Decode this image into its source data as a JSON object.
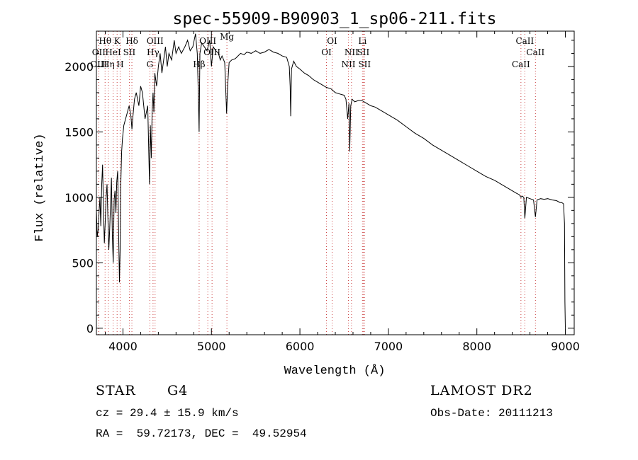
{
  "chart_data": {
    "type": "line",
    "title": "spec-55909-B90903_1_sp06-211.fits",
    "xlabel": "Wavelength (Å)",
    "ylabel": "Flux (relative)",
    "xlim": [
      3700,
      9100
    ],
    "ylim": [
      -50,
      2270
    ],
    "xticks": [
      4000,
      5000,
      6000,
      7000,
      8000,
      9000
    ],
    "yticks": [
      0,
      500,
      1000,
      1500,
      2000
    ],
    "grid": false,
    "series": [
      {
        "x": [
          3700,
          3710,
          3720,
          3730,
          3740,
          3750,
          3760,
          3770,
          3780,
          3790,
          3800,
          3810,
          3820,
          3830,
          3840,
          3850,
          3860,
          3870,
          3880,
          3890,
          3900,
          3910,
          3920,
          3930,
          3940,
          3950,
          3960,
          3968,
          3975,
          3985,
          3995,
          4010,
          4030,
          4050,
          4070,
          4090,
          4101,
          4110,
          4130,
          4150,
          4180,
          4200,
          4220,
          4250,
          4280,
          4300,
          4310,
          4320,
          4330,
          4340,
          4350,
          4360,
          4380,
          4400,
          4420,
          4440,
          4460,
          4480,
          4500,
          4520,
          4550,
          4580,
          4600,
          4630,
          4660,
          4700,
          4730,
          4760,
          4790,
          4820,
          4840,
          4850,
          4861,
          4870,
          4890,
          4920,
          4950,
          4980,
          5000,
          5020,
          5050,
          5080,
          5100,
          5120,
          5150,
          5172,
          5183,
          5200,
          5230,
          5270,
          5300,
          5330,
          5370,
          5400,
          5450,
          5500,
          5550,
          5600,
          5650,
          5700,
          5750,
          5800,
          5850,
          5880,
          5890,
          5896,
          5905,
          5930,
          5960,
          6000,
          6050,
          6100,
          6150,
          6200,
          6250,
          6300,
          6350,
          6400,
          6450,
          6500,
          6520,
          6540,
          6555,
          6563,
          6575,
          6590,
          6620,
          6660,
          6700,
          6750,
          6800,
          6850,
          6900,
          7000,
          7100,
          7200,
          7300,
          7400,
          7500,
          7600,
          7700,
          7800,
          7900,
          8000,
          8100,
          8200,
          8300,
          8400,
          8450,
          8480,
          8498,
          8510,
          8530,
          8542,
          8560,
          8600,
          8640,
          8662,
          8680,
          8720,
          8760,
          8800,
          8850,
          8900,
          8940,
          8960,
          8980,
          8990,
          8995,
          9000
        ],
        "y": [
          900,
          700,
          750,
          880,
          1000,
          780,
          1100,
          1250,
          900,
          650,
          820,
          1000,
          1100,
          850,
          600,
          750,
          950,
          1150,
          700,
          500,
          980,
          1050,
          880,
          1120,
          1200,
          780,
          350,
          600,
          1080,
          1350,
          1450,
          1550,
          1600,
          1650,
          1700,
          1620,
          1520,
          1600,
          1750,
          1800,
          1700,
          1850,
          1800,
          1600,
          1700,
          1100,
          1550,
          1300,
          1650,
          1800,
          1650,
          1950,
          1850,
          2000,
          2100,
          1950,
          2050,
          2150,
          2000,
          2100,
          2050,
          2200,
          2100,
          2150,
          2100,
          2150,
          2200,
          2120,
          2150,
          2250,
          2100,
          1850,
          1500,
          2100,
          2180,
          2150,
          2120,
          2200,
          2000,
          2150,
          2120,
          2100,
          2050,
          2080,
          2030,
          1640,
          1850,
          2030,
          2050,
          2060,
          2080,
          2100,
          2090,
          2110,
          2100,
          2120,
          2100,
          2110,
          2130,
          2110,
          2100,
          2080,
          2070,
          2000,
          1850,
          1620,
          1980,
          2040,
          2000,
          1980,
          1950,
          1930,
          1900,
          1880,
          1860,
          1840,
          1830,
          1800,
          1790,
          1780,
          1750,
          1600,
          1720,
          1350,
          1700,
          1750,
          1730,
          1740,
          1740,
          1720,
          1700,
          1690,
          1670,
          1630,
          1590,
          1540,
          1490,
          1450,
          1400,
          1360,
          1320,
          1280,
          1240,
          1200,
          1160,
          1130,
          1090,
          1050,
          1030,
          1020,
          1000,
          1010,
          1000,
          840,
          1000,
          990,
          980,
          850,
          980,
          990,
          985,
          990,
          980,
          975,
          960,
          960,
          950,
          800,
          200,
          0
        ]
      }
    ],
    "annotations": [
      {
        "label": "Hθ",
        "x": 3798,
        "row": 1,
        "color": "#b05050"
      },
      {
        "label": "OII",
        "x": 3727,
        "row": 2,
        "color": "#b05050"
      },
      {
        "label": "OIII",
        "x": 3727,
        "row": 3,
        "color": "#b05050"
      },
      {
        "label": "K",
        "x": 3934,
        "row": 1,
        "color": "#b05050"
      },
      {
        "label": "HeI",
        "x": 3889,
        "row": 2,
        "color": "#b05050"
      },
      {
        "label": "Hη",
        "x": 3835,
        "row": 3,
        "color": "#b05050"
      },
      {
        "label": "SII",
        "x": 4072,
        "row": 2,
        "color": "#b05050"
      },
      {
        "label": "H",
        "x": 3968,
        "row": 3,
        "color": "#b05050"
      },
      {
        "label": "Hδ",
        "x": 4101,
        "row": 1,
        "color": "#b05050"
      },
      {
        "label": "OIII",
        "x": 4363,
        "row": 1,
        "color": "#b05050"
      },
      {
        "label": "Hγ",
        "x": 4340,
        "row": 2,
        "color": "#b05050"
      },
      {
        "label": "G",
        "x": 4304,
        "row": 3,
        "color": "#b05050"
      },
      {
        "label": "OIII",
        "x": 4959,
        "row": 1,
        "color": "#b05050"
      },
      {
        "label": "OIII",
        "x": 5007,
        "row": 2,
        "color": "#b05050"
      },
      {
        "label": "Hβ",
        "x": 4861,
        "row": 3,
        "color": "#b05050"
      },
      {
        "label": "Mg",
        "x": 5175,
        "row": 0,
        "color": "#b05050"
      },
      {
        "label": "OI",
        "x": 6364,
        "row": 1,
        "color": "#b05050"
      },
      {
        "label": "OI",
        "x": 6300,
        "row": 2,
        "color": "#b05050"
      },
      {
        "label": "Li",
        "x": 6707,
        "row": 1,
        "color": "#b05050"
      },
      {
        "label": "NII",
        "x": 6583,
        "row": 2,
        "color": "#b05050"
      },
      {
        "label": "SII",
        "x": 6716,
        "row": 2,
        "color": "#b05050"
      },
      {
        "label": "NII",
        "x": 6548,
        "row": 3,
        "color": "#b05050"
      },
      {
        "label": "SII",
        "x": 6731,
        "row": 3,
        "color": "#b05050"
      },
      {
        "label": "CaII",
        "x": 8542,
        "row": 1,
        "color": "#b05050"
      },
      {
        "label": "CaII",
        "x": 8662,
        "row": 2,
        "color": "#b05050"
      },
      {
        "label": "CaII",
        "x": 8498,
        "row": 3,
        "color": "#b05050"
      }
    ],
    "line_color": "#000000",
    "marker_line_color": "#cc4444"
  },
  "info": {
    "object_class": "STAR",
    "subclass": "G4",
    "survey": "LAMOST DR2",
    "cz": "cz = 29.4 ± 15.9 km/s",
    "obs_date": "Obs-Date: 20111213",
    "coords": "RA =  59.72173, DEC =  49.52954"
  }
}
